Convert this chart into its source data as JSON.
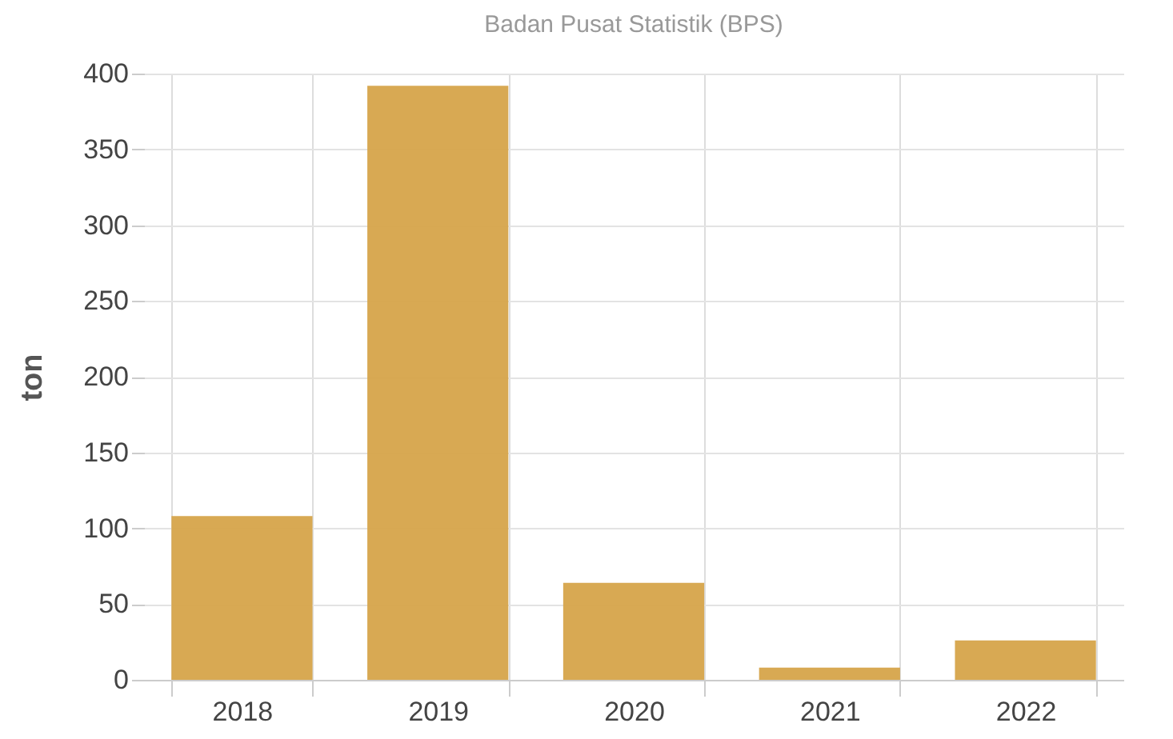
{
  "chart_data": {
    "type": "bar",
    "title": "Badan Pusat Statistik (BPS)",
    "ylabel": "ton",
    "categories": [
      "2018",
      "2019",
      "2020",
      "2021",
      "2022"
    ],
    "values": [
      108,
      392,
      64,
      8,
      26
    ],
    "color": "#d6a44a",
    "ylim": [
      0,
      400
    ],
    "yticks": [
      0,
      50,
      100,
      150,
      200,
      250,
      300,
      350,
      400
    ],
    "grid": true
  }
}
